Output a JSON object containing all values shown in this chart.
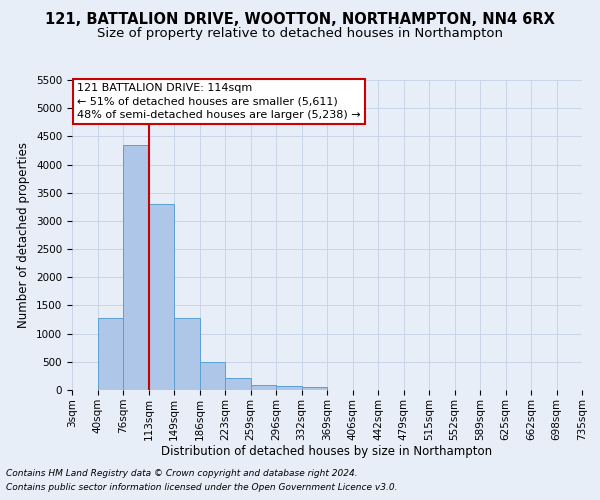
{
  "title": "121, BATTALION DRIVE, WOOTTON, NORTHAMPTON, NN4 6RX",
  "subtitle": "Size of property relative to detached houses in Northampton",
  "xlabel": "Distribution of detached houses by size in Northampton",
  "ylabel": "Number of detached properties",
  "footnote1": "Contains HM Land Registry data © Crown copyright and database right 2024.",
  "footnote2": "Contains public sector information licensed under the Open Government Licence v3.0.",
  "bin_labels": [
    "3sqm",
    "40sqm",
    "76sqm",
    "113sqm",
    "149sqm",
    "186sqm",
    "223sqm",
    "259sqm",
    "296sqm",
    "332sqm",
    "369sqm",
    "406sqm",
    "442sqm",
    "479sqm",
    "515sqm",
    "552sqm",
    "589sqm",
    "625sqm",
    "662sqm",
    "698sqm",
    "735sqm"
  ],
  "bar_values": [
    0,
    1270,
    4350,
    3300,
    1280,
    490,
    215,
    95,
    75,
    55,
    0,
    0,
    0,
    0,
    0,
    0,
    0,
    0,
    0,
    0
  ],
  "bar_color": "#aec6e8",
  "bar_edge_color": "#5a9fd4",
  "bar_width": 1.0,
  "vline_x": 3.0,
  "vline_color": "#cc0000",
  "ylim": [
    0,
    5500
  ],
  "yticks": [
    0,
    500,
    1000,
    1500,
    2000,
    2500,
    3000,
    3500,
    4000,
    4500,
    5000,
    5500
  ],
  "annotation_text": "121 BATTALION DRIVE: 114sqm\n← 51% of detached houses are smaller (5,611)\n48% of semi-detached houses are larger (5,238) →",
  "annotation_box_color": "#ffffff",
  "annotation_box_edge": "#cc0000",
  "grid_color": "#c8d4e8",
  "background_color": "#e8eef8",
  "title_fontsize": 10.5,
  "subtitle_fontsize": 9.5,
  "label_fontsize": 8.5,
  "tick_fontsize": 7.5,
  "annotation_fontsize": 8.0,
  "footnote_fontsize": 6.5
}
